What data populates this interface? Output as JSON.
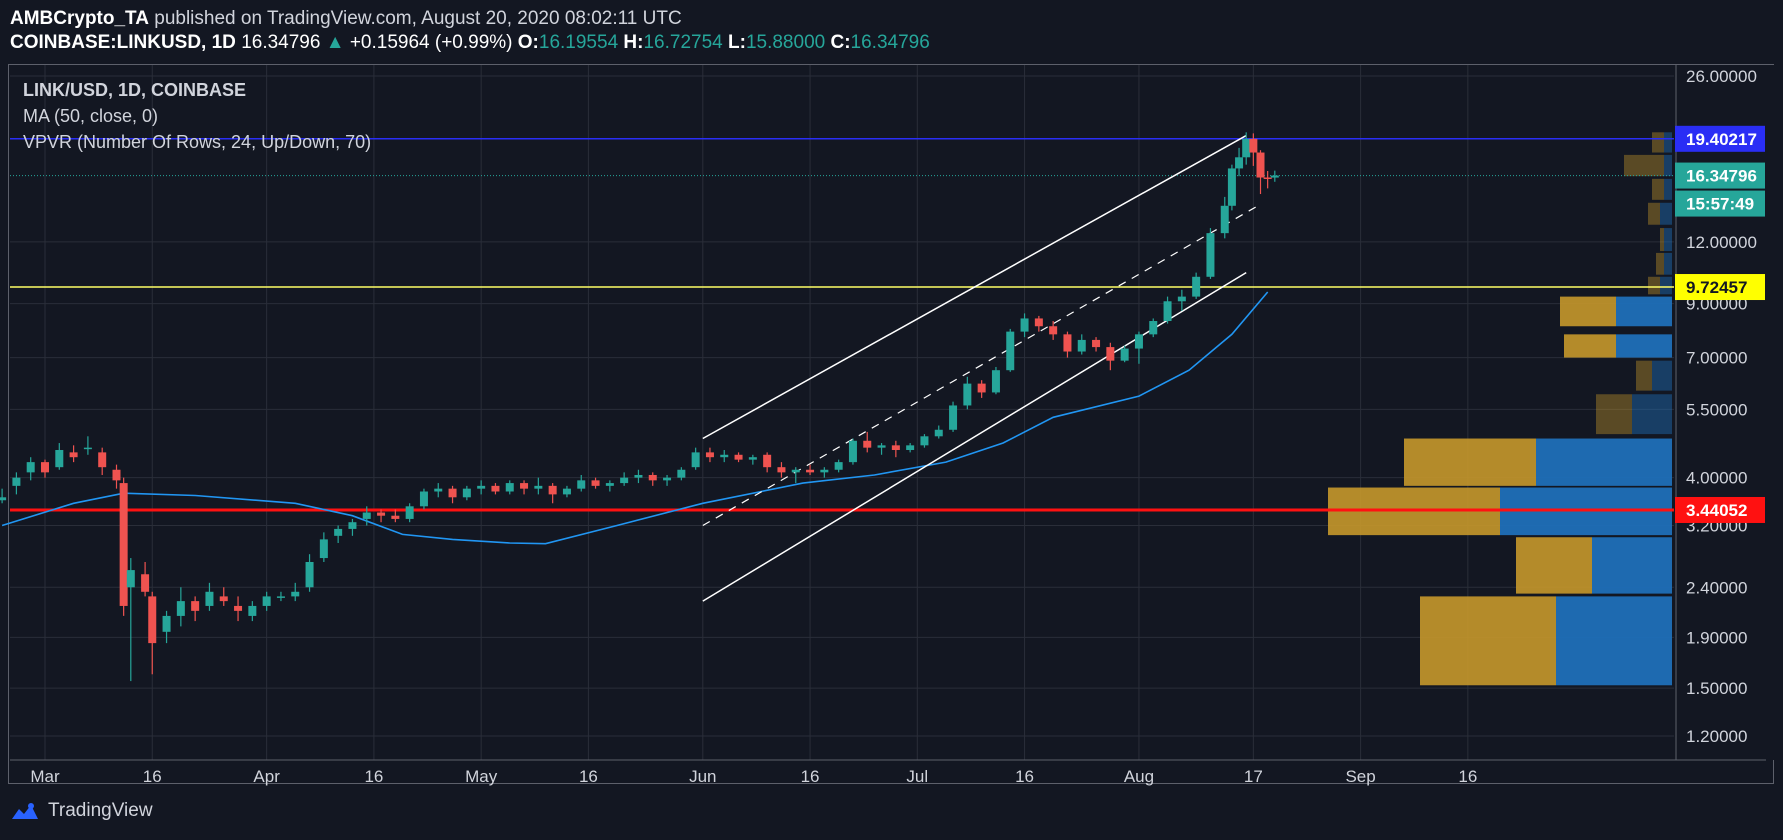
{
  "header": {
    "author": "AMBCrypto_TA",
    "published_text": " published on TradingView.com, August 20, 2020 08:02:11 UTC",
    "symbol_line": "COINBASE:LINKUSD, 1D",
    "last_price": "16.34796",
    "change_arrow": "▲",
    "change": "+0.15964 (+0.99%)",
    "o_label": "O:",
    "o_value": "16.19554",
    "h_label": "H:",
    "h_value": "16.72754",
    "l_label": "L:",
    "l_value": "15.88000",
    "c_label": "C:",
    "c_value": "16.34796"
  },
  "legend": {
    "title": "LINK/USD, 1D, COINBASE",
    "ma": "MA (50, close, 0)",
    "vpvr": "VPVR (Number Of Rows, 24, Up/Down, 70)"
  },
  "footer": {
    "brand": "TradingView",
    "logo_icon": "tradingview-logo-icon"
  },
  "colors": {
    "background": "#131722",
    "up": "#26a69a",
    "down": "#ef5350",
    "ma": "#2196f3",
    "vp_up": "#1f6fb8",
    "vp_down": "#c6982b",
    "blue_line": "#2a2ef5",
    "yellow_line": "#ffff66",
    "red_line": "#ff1111"
  },
  "chart_data": {
    "type": "candlestick",
    "y_scale": "log",
    "y_ticks": [
      "26.00000",
      "12.00000",
      "9.00000",
      "7.00000",
      "5.50000",
      "4.00000",
      "3.20000",
      "2.40000",
      "1.90000",
      "1.50000",
      "1.20000"
    ],
    "x_ticks": [
      "Mar",
      "16",
      "Apr",
      "16",
      "May",
      "16",
      "Jun",
      "16",
      "Jul",
      "16",
      "Aug",
      "17",
      "Sep",
      "16"
    ],
    "price_labels": [
      {
        "value": "19.40217",
        "color": "#2a2ef5"
      },
      {
        "value": "16.34796",
        "color": "#26a69a"
      },
      {
        "value": "15:57:49",
        "color": "#26a69a"
      },
      {
        "value": "9.72457",
        "color": "#ffff00"
      },
      {
        "value": "3.44052",
        "color": "#ff1111"
      }
    ],
    "horizontal_lines": [
      {
        "price": 19.40217,
        "color": "#2a2ef5"
      },
      {
        "price": 9.72457,
        "color": "#ffff66"
      },
      {
        "price": 3.44052,
        "color": "#ff1111"
      }
    ],
    "current_price": 16.34796,
    "channel": {
      "upper": [
        [
          "2020-06-01",
          4.8
        ],
        [
          "2020-08-16",
          19.7
        ]
      ],
      "middle": [
        [
          "2020-06-01",
          3.2
        ],
        [
          "2020-08-18",
          14.3
        ]
      ],
      "lower": [
        [
          "2020-06-01",
          2.25
        ],
        [
          "2020-08-16",
          10.4
        ]
      ]
    },
    "ma50": [
      [
        "2020-02-24",
        3.2
      ],
      [
        "2020-03-05",
        3.55
      ],
      [
        "2020-03-12",
        3.72
      ],
      [
        "2020-03-22",
        3.68
      ],
      [
        "2020-04-05",
        3.55
      ],
      [
        "2020-04-13",
        3.35
      ],
      [
        "2020-04-20",
        3.07
      ],
      [
        "2020-04-27",
        3.0
      ],
      [
        "2020-05-05",
        2.95
      ],
      [
        "2020-05-10",
        2.94
      ],
      [
        "2020-05-20",
        3.2
      ],
      [
        "2020-06-01",
        3.55
      ],
      [
        "2020-06-15",
        3.9
      ],
      [
        "2020-06-25",
        4.05
      ],
      [
        "2020-07-05",
        4.3
      ],
      [
        "2020-07-13",
        4.7
      ],
      [
        "2020-07-20",
        5.3
      ],
      [
        "2020-08-01",
        5.85
      ],
      [
        "2020-08-08",
        6.6
      ],
      [
        "2020-08-14",
        7.8
      ],
      [
        "2020-08-19",
        9.5
      ]
    ],
    "volume_profile": [
      {
        "from": 1.52,
        "to": 2.3,
        "up": 0.29,
        "down": 0.34
      },
      {
        "from": 2.33,
        "to": 3.03,
        "up": 0.2,
        "down": 0.19
      },
      {
        "from": 3.06,
        "to": 3.82,
        "up": 0.43,
        "down": 0.43
      },
      {
        "from": 3.85,
        "to": 4.8,
        "up": 0.34,
        "down": 0.33
      },
      {
        "from": 4.9,
        "to": 5.9,
        "up": 0.1,
        "down": 0.09
      },
      {
        "from": 6.0,
        "to": 6.9,
        "up": 0.05,
        "down": 0.04
      },
      {
        "from": 7.0,
        "to": 7.8,
        "up": 0.14,
        "down": 0.13
      },
      {
        "from": 8.1,
        "to": 9.3,
        "up": 0.14,
        "down": 0.14
      },
      {
        "from": 9.4,
        "to": 10.2,
        "up": 0.03,
        "down": 0.03
      },
      {
        "from": 10.3,
        "to": 11.4,
        "up": 0.02,
        "down": 0.02
      },
      {
        "from": 11.5,
        "to": 12.8,
        "up": 0.02,
        "down": 0.01
      },
      {
        "from": 13.0,
        "to": 14.4,
        "up": 0.03,
        "down": 0.03
      },
      {
        "from": 14.6,
        "to": 16.1,
        "up": 0.02,
        "down": 0.03
      },
      {
        "from": 16.3,
        "to": 18.0,
        "up": 0.02,
        "down": 0.1
      },
      {
        "from": 18.2,
        "to": 20.0,
        "up": 0.02,
        "down": 0.03
      }
    ],
    "candles": [
      [
        "2020-02-24",
        3.6,
        3.8,
        3.55,
        3.65
      ],
      [
        "2020-02-26",
        3.85,
        4.1,
        3.7,
        4.0
      ],
      [
        "2020-02-28",
        4.1,
        4.4,
        3.95,
        4.3
      ],
      [
        "2020-03-01",
        4.3,
        4.35,
        4.0,
        4.1
      ],
      [
        "2020-03-03",
        4.2,
        4.7,
        4.15,
        4.55
      ],
      [
        "2020-03-05",
        4.5,
        4.65,
        4.3,
        4.4
      ],
      [
        "2020-03-07",
        4.6,
        4.85,
        4.45,
        4.6
      ],
      [
        "2020-03-09",
        4.5,
        4.6,
        4.05,
        4.2
      ],
      [
        "2020-03-11",
        4.15,
        4.25,
        3.8,
        3.95
      ],
      [
        "2020-03-12",
        3.9,
        4.0,
        2.1,
        2.2
      ],
      [
        "2020-03-13",
        2.4,
        2.75,
        1.55,
        2.6
      ],
      [
        "2020-03-15",
        2.55,
        2.7,
        2.3,
        2.35
      ],
      [
        "2020-03-16",
        2.3,
        2.35,
        1.6,
        1.85
      ],
      [
        "2020-03-18",
        1.95,
        2.15,
        1.85,
        2.1
      ],
      [
        "2020-03-20",
        2.1,
        2.4,
        2.0,
        2.25
      ],
      [
        "2020-03-22",
        2.25,
        2.3,
        2.05,
        2.15
      ],
      [
        "2020-03-24",
        2.2,
        2.45,
        2.15,
        2.35
      ],
      [
        "2020-03-26",
        2.3,
        2.4,
        2.2,
        2.25
      ],
      [
        "2020-03-28",
        2.2,
        2.3,
        2.05,
        2.15
      ],
      [
        "2020-03-30",
        2.1,
        2.25,
        2.05,
        2.2
      ],
      [
        "2020-04-01",
        2.2,
        2.35,
        2.15,
        2.3
      ],
      [
        "2020-04-03",
        2.3,
        2.35,
        2.25,
        2.3
      ],
      [
        "2020-04-05",
        2.3,
        2.45,
        2.25,
        2.35
      ],
      [
        "2020-04-07",
        2.4,
        2.8,
        2.35,
        2.7
      ],
      [
        "2020-04-09",
        2.75,
        3.1,
        2.7,
        3.0
      ],
      [
        "2020-04-11",
        3.05,
        3.2,
        2.95,
        3.15
      ],
      [
        "2020-04-13",
        3.15,
        3.3,
        3.05,
        3.25
      ],
      [
        "2020-04-15",
        3.3,
        3.5,
        3.2,
        3.4
      ],
      [
        "2020-04-17",
        3.4,
        3.45,
        3.25,
        3.35
      ],
      [
        "2020-04-19",
        3.35,
        3.45,
        3.25,
        3.3
      ],
      [
        "2020-04-21",
        3.3,
        3.55,
        3.25,
        3.5
      ],
      [
        "2020-04-23",
        3.5,
        3.8,
        3.45,
        3.75
      ],
      [
        "2020-04-25",
        3.75,
        3.9,
        3.65,
        3.8
      ],
      [
        "2020-04-27",
        3.8,
        3.85,
        3.55,
        3.65
      ],
      [
        "2020-04-29",
        3.65,
        3.85,
        3.6,
        3.8
      ],
      [
        "2020-05-01",
        3.8,
        3.95,
        3.7,
        3.85
      ],
      [
        "2020-05-03",
        3.85,
        3.9,
        3.7,
        3.75
      ],
      [
        "2020-05-05",
        3.75,
        3.95,
        3.7,
        3.9
      ],
      [
        "2020-05-07",
        3.9,
        3.95,
        3.7,
        3.8
      ],
      [
        "2020-05-09",
        3.8,
        4.0,
        3.7,
        3.85
      ],
      [
        "2020-05-11",
        3.85,
        3.9,
        3.55,
        3.7
      ],
      [
        "2020-05-13",
        3.7,
        3.85,
        3.65,
        3.8
      ],
      [
        "2020-05-15",
        3.8,
        4.05,
        3.75,
        3.95
      ],
      [
        "2020-05-17",
        3.95,
        4.0,
        3.8,
        3.85
      ],
      [
        "2020-05-19",
        3.85,
        3.95,
        3.75,
        3.9
      ],
      [
        "2020-05-21",
        3.9,
        4.1,
        3.85,
        4.0
      ],
      [
        "2020-05-23",
        4.0,
        4.15,
        3.9,
        4.05
      ],
      [
        "2020-05-25",
        4.05,
        4.1,
        3.85,
        3.95
      ],
      [
        "2020-05-27",
        3.95,
        4.05,
        3.85,
        4.0
      ],
      [
        "2020-05-29",
        4.0,
        4.2,
        3.95,
        4.15
      ],
      [
        "2020-05-31",
        4.2,
        4.6,
        4.15,
        4.5
      ],
      [
        "2020-06-02",
        4.5,
        4.6,
        4.3,
        4.4
      ],
      [
        "2020-06-04",
        4.4,
        4.55,
        4.3,
        4.45
      ],
      [
        "2020-06-06",
        4.45,
        4.5,
        4.3,
        4.35
      ],
      [
        "2020-06-08",
        4.35,
        4.45,
        4.25,
        4.4
      ],
      [
        "2020-06-10",
        4.45,
        4.5,
        4.1,
        4.2
      ],
      [
        "2020-06-12",
        4.2,
        4.3,
        4.0,
        4.1
      ],
      [
        "2020-06-14",
        4.1,
        4.2,
        3.9,
        4.15
      ],
      [
        "2020-06-16",
        4.15,
        4.25,
        4.05,
        4.1
      ],
      [
        "2020-06-18",
        4.1,
        4.2,
        4.0,
        4.15
      ],
      [
        "2020-06-20",
        4.15,
        4.35,
        4.1,
        4.3
      ],
      [
        "2020-06-22",
        4.3,
        4.8,
        4.25,
        4.75
      ],
      [
        "2020-06-24",
        4.75,
        4.95,
        4.5,
        4.6
      ],
      [
        "2020-06-26",
        4.6,
        4.7,
        4.45,
        4.65
      ],
      [
        "2020-06-28",
        4.65,
        4.75,
        4.4,
        4.55
      ],
      [
        "2020-06-30",
        4.55,
        4.7,
        4.5,
        4.65
      ],
      [
        "2020-07-02",
        4.65,
        4.9,
        4.6,
        4.85
      ],
      [
        "2020-07-04",
        4.85,
        5.1,
        4.8,
        5.0
      ],
      [
        "2020-07-06",
        5.0,
        5.7,
        4.95,
        5.6
      ],
      [
        "2020-07-08",
        5.6,
        6.4,
        5.5,
        6.2
      ],
      [
        "2020-07-10",
        6.2,
        6.3,
        5.8,
        5.95
      ],
      [
        "2020-07-12",
        5.95,
        6.7,
        5.9,
        6.6
      ],
      [
        "2020-07-14",
        6.6,
        8.0,
        6.55,
        7.9
      ],
      [
        "2020-07-16",
        7.9,
        8.6,
        7.7,
        8.4
      ],
      [
        "2020-07-18",
        8.4,
        8.5,
        7.9,
        8.1
      ],
      [
        "2020-07-20",
        8.1,
        8.3,
        7.6,
        7.8
      ],
      [
        "2020-07-22",
        7.8,
        7.9,
        7.0,
        7.2
      ],
      [
        "2020-07-24",
        7.2,
        7.8,
        7.1,
        7.6
      ],
      [
        "2020-07-26",
        7.6,
        7.7,
        7.2,
        7.35
      ],
      [
        "2020-07-28",
        7.35,
        7.5,
        6.6,
        6.9
      ],
      [
        "2020-07-30",
        6.9,
        7.4,
        6.85,
        7.3
      ],
      [
        "2020-08-01",
        7.3,
        7.9,
        6.8,
        7.8
      ],
      [
        "2020-08-03",
        7.8,
        8.4,
        7.7,
        8.3
      ],
      [
        "2020-08-05",
        8.3,
        9.3,
        8.2,
        9.1
      ],
      [
        "2020-08-07",
        9.1,
        9.6,
        8.7,
        9.3
      ],
      [
        "2020-08-09",
        9.3,
        10.4,
        9.2,
        10.2
      ],
      [
        "2020-08-11",
        10.2,
        12.8,
        10.1,
        12.5
      ],
      [
        "2020-08-13",
        12.5,
        14.8,
        12.2,
        14.2
      ],
      [
        "2020-08-14",
        14.2,
        17.2,
        13.9,
        16.9
      ],
      [
        "2020-08-15",
        16.9,
        18.6,
        16.3,
        17.8
      ],
      [
        "2020-08-16",
        17.8,
        20.0,
        17.2,
        19.4
      ],
      [
        "2020-08-17",
        19.4,
        19.9,
        17.1,
        18.2
      ],
      [
        "2020-08-18",
        18.2,
        18.4,
        15.0,
        16.2
      ],
      [
        "2020-08-19",
        16.2,
        16.7,
        15.4,
        16.1
      ],
      [
        "2020-08-20",
        16.19554,
        16.72754,
        15.88,
        16.34796
      ]
    ]
  }
}
